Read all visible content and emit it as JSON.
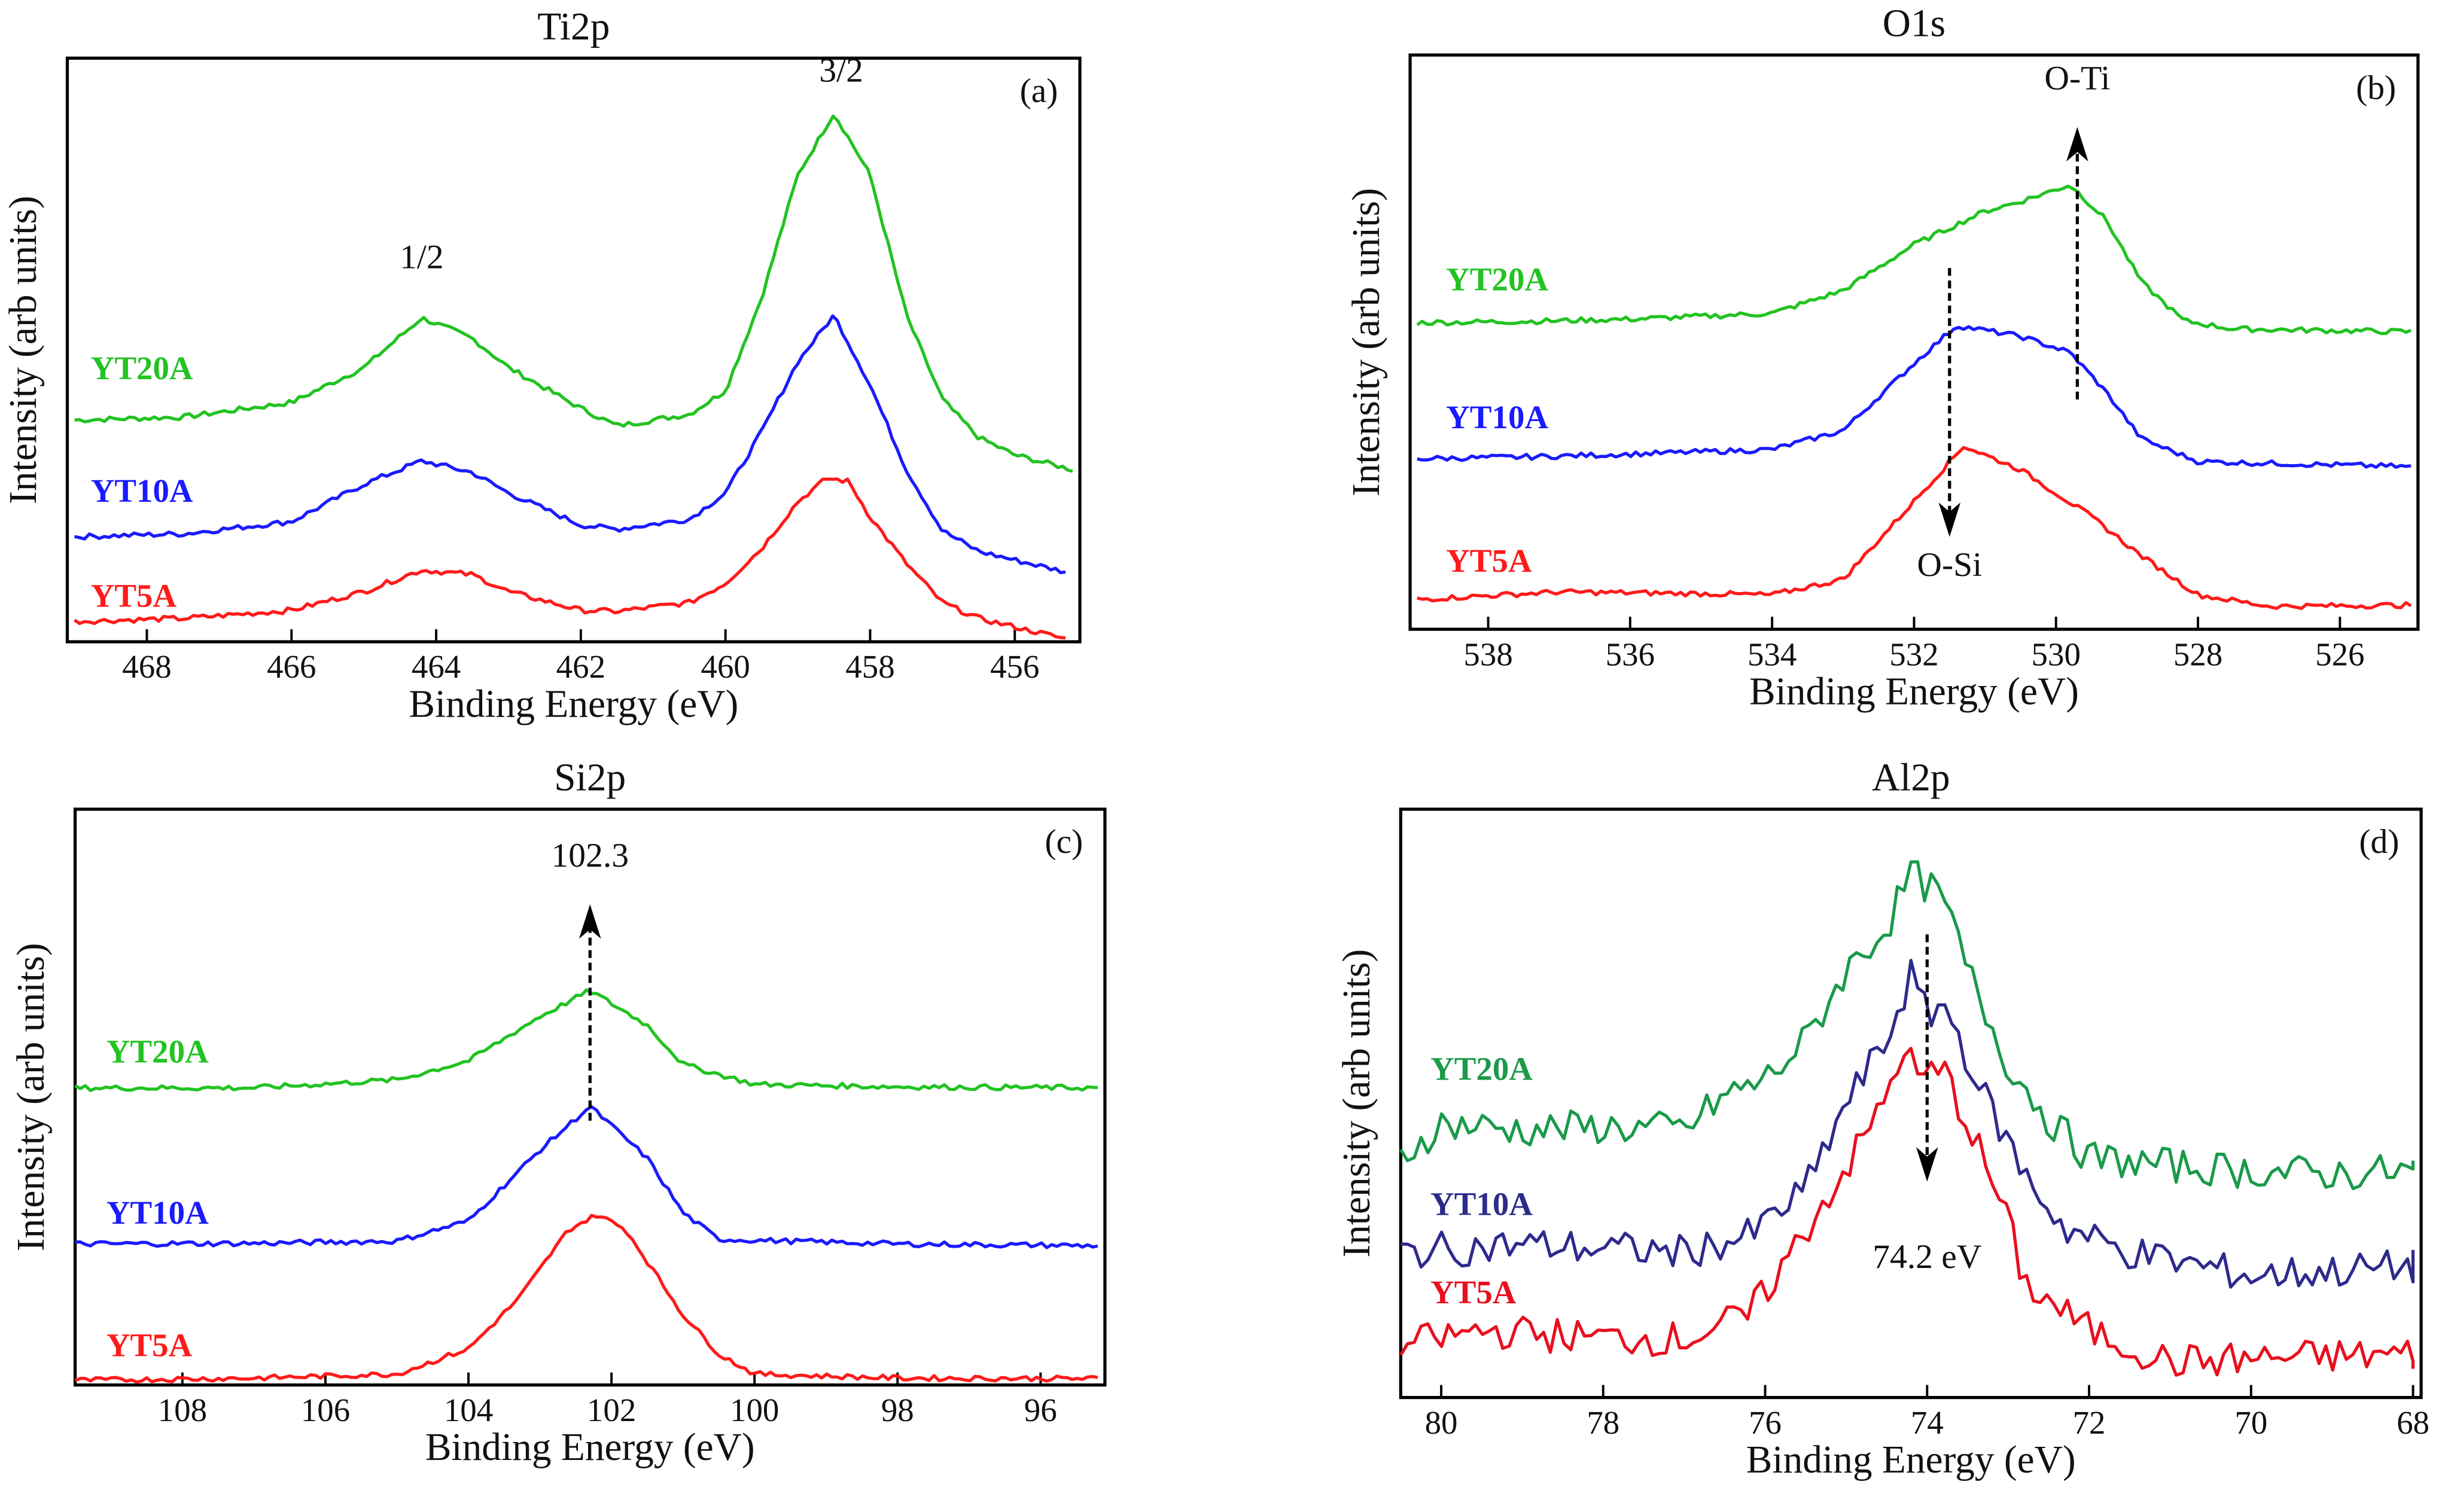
{
  "chart_data": [
    {
      "type": "line",
      "title": "Ti2p",
      "panel_label": "(a)",
      "xlabel": "Binding Energy (eV)",
      "ylabel": "Intensity (arb units)",
      "xlim": [
        469.1,
        455.1
      ],
      "ylim": [
        0,
        100
      ],
      "xticks": [
        468,
        466,
        464,
        462,
        460,
        458,
        456
      ],
      "annotations": [
        {
          "text": "1/2",
          "x": 464.2,
          "y": 64
        },
        {
          "text": "3/2",
          "x": 458.4,
          "y": 96
        }
      ],
      "series": [
        {
          "name": "YT20A",
          "color": "#22c322",
          "label_y": 45,
          "x": [
            469,
            467.5,
            466,
            465,
            464.2,
            463.5,
            463,
            462,
            461.5,
            460.5,
            460,
            459.5,
            459,
            458.5,
            458,
            457.5,
            457,
            456.5,
            456,
            455.2
          ],
          "y": [
            38,
            38.5,
            41,
            47,
            55.5,
            52,
            47,
            40,
            37,
            39,
            43,
            59,
            80,
            90.6,
            80,
            56,
            41.5,
            35,
            32,
            29.5
          ]
        },
        {
          "name": "YT10A",
          "color": "#1a1aff",
          "label_y": 24,
          "x": [
            469,
            467.5,
            466,
            465,
            464.2,
            463.5,
            463,
            462,
            461.5,
            460.5,
            460,
            459.5,
            459,
            458.5,
            458,
            457.5,
            457,
            456.5,
            456,
            455.3
          ],
          "y": [
            18,
            18.5,
            20.6,
            27,
            31,
            29,
            25.5,
            20,
            19.3,
            21,
            25.5,
            36,
            48,
            56,
            44,
            29.5,
            19,
            15.5,
            14,
            12
          ]
        },
        {
          "name": "YT5A",
          "color": "#ff1a1a",
          "label_y": 6,
          "x": [
            469,
            467.5,
            466,
            465,
            464.2,
            463.5,
            463,
            462,
            461.5,
            460.5,
            460,
            459.5,
            459,
            458.6,
            458.3,
            458,
            457.5,
            457,
            456.5,
            455.3
          ],
          "y": [
            3.5,
            4,
            5.4,
            8.6,
            12.3,
            11.5,
            8.6,
            5.4,
            5.2,
            6.7,
            10,
            16,
            24,
            28,
            27.5,
            21.4,
            13.4,
            6.7,
            4,
            0.5
          ]
        }
      ]
    },
    {
      "type": "line",
      "title": "O1s",
      "panel_label": "(b)",
      "xlabel": "Binding Energy (eV)",
      "ylabel": "Intensity (arb units)",
      "xlim": [
        539.1,
        524.9
      ],
      "ylim": [
        0,
        100
      ],
      "xticks": [
        538,
        536,
        534,
        532,
        530,
        528,
        526
      ],
      "annotations": [
        {
          "text": "O-Ti",
          "x": 529.7,
          "y": 94,
          "arrow": "up"
        },
        {
          "text": "O-Si",
          "x": 531.5,
          "y": 12,
          "arrow": "down"
        }
      ],
      "series": [
        {
          "name": "YT20A",
          "color": "#22c322",
          "label_y": 59,
          "x": [
            539,
            537.5,
            536,
            534,
            533,
            532,
            531,
            530.5,
            529.8,
            529.3,
            528.8,
            528.2,
            527.5,
            525
          ],
          "y": [
            53.4,
            53.6,
            54,
            55,
            59,
            67,
            72.8,
            74.5,
            77.4,
            71.4,
            60.5,
            53.7,
            52.3,
            51.8
          ]
        },
        {
          "name": "YT10A",
          "color": "#1a1aff",
          "label_y": 35,
          "x": [
            539,
            537.5,
            536,
            534,
            533,
            532,
            531.4,
            530.5,
            529.8,
            529.3,
            528.8,
            528,
            525
          ],
          "y": [
            29.7,
            30,
            30.5,
            31.3,
            34.6,
            46.3,
            52.9,
            51,
            48.2,
            41.4,
            33.2,
            29.2,
            28.3
          ]
        },
        {
          "name": "YT5A",
          "color": "#ff1a1a",
          "label_y": 10,
          "x": [
            539,
            537,
            535,
            534,
            533,
            532,
            531.3,
            530.5,
            529.5,
            528.8,
            528,
            527,
            525
          ],
          "y": [
            5.2,
            6.5,
            6.2,
            6,
            8.7,
            22.3,
            31.9,
            27.8,
            19.6,
            12.8,
            6,
            4,
            4.2
          ]
        }
      ]
    },
    {
      "type": "line",
      "title": "Si2p",
      "panel_label": "(c)",
      "xlabel": "Binding Energy (eV)",
      "ylabel": "Intensity (arb units)",
      "xlim": [
        109.5,
        95.1
      ],
      "ylim": [
        0,
        100
      ],
      "xticks": [
        108,
        106,
        104,
        102,
        100,
        98,
        96
      ],
      "annotations": [
        {
          "text": "102.3",
          "x": 102.3,
          "y": 90,
          "arrow": "up"
        }
      ],
      "series": [
        {
          "name": "YT20A",
          "color": "#22c322",
          "label_y": 56,
          "x": [
            109.5,
            107,
            105,
            104,
            103,
            102.3,
            101.5,
            101,
            100,
            98,
            95.2
          ],
          "y": [
            51.6,
            51.6,
            53,
            56.3,
            64,
            68.5,
            62.5,
            55.7,
            52.2,
            51.8,
            51.6
          ]
        },
        {
          "name": "YT10A",
          "color": "#1a1aff",
          "label_y": 28,
          "x": [
            109.5,
            107,
            105,
            104,
            103,
            102.3,
            101.5,
            101,
            100.5,
            98,
            95.2
          ],
          "y": [
            24.5,
            24.6,
            25,
            28.5,
            40.8,
            48.4,
            39.4,
            29.9,
            25.3,
            24.5,
            24.2
          ]
        },
        {
          "name": "YT5A",
          "color": "#ff1a1a",
          "label_y": 5,
          "x": [
            109.5,
            107,
            105,
            104,
            103.3,
            102.6,
            102.2,
            101.8,
            101,
            100.5,
            100,
            98,
            95.2
          ],
          "y": [
            0.8,
            1.2,
            1.9,
            6.3,
            15,
            27,
            29.6,
            27,
            12.2,
            5.4,
            1.9,
            1.2,
            1.1
          ]
        }
      ]
    },
    {
      "type": "line",
      "title": "Al2p",
      "panel_label": "(d)",
      "xlabel": "Binding Energy (eV)",
      "ylabel": "Intensity (arb units)",
      "xlim": [
        80.5,
        67.9
      ],
      "ylim": [
        0,
        100
      ],
      "xticks": [
        80,
        78,
        76,
        74,
        72,
        70,
        68
      ],
      "annotations": [
        {
          "text": "74.2 eV",
          "x": 74.0,
          "y": 22,
          "arrow": "down"
        }
      ],
      "series": [
        {
          "name": "YT20A",
          "color": "#1a9a4a",
          "label_y": 54,
          "x": [
            80.5,
            80,
            79,
            78,
            77,
            76.5,
            76,
            75.5,
            75,
            74.5,
            74.2,
            73.8,
            73.5,
            73,
            72.5,
            72,
            71,
            70,
            69,
            68
          ],
          "y": [
            40.7,
            46.5,
            45.5,
            46,
            45.5,
            51.3,
            54,
            60.6,
            72.6,
            80,
            89.1,
            84.6,
            72.6,
            56.6,
            47.3,
            40.7,
            39.4,
            38.5,
            38,
            38.5
          ]
        },
        {
          "name": "YT10A",
          "color": "#2e2a8c",
          "label_y": 31,
          "x": [
            80.5,
            79,
            77,
            76.2,
            75.5,
            75,
            74.5,
            74.2,
            74,
            73.8,
            73.3,
            72.8,
            72.3,
            71.5,
            70,
            68
          ],
          "y": [
            24.7,
            26,
            24.7,
            27.4,
            35.4,
            50,
            60.6,
            71.8,
            64.6,
            67.3,
            51.3,
            38,
            28.7,
            24.7,
            20.7,
            22.3
          ]
        },
        {
          "name": "YT5A",
          "color": "#e8101e",
          "label_y": 16,
          "x": [
            80.5,
            79.5,
            78,
            77,
            76.2,
            75.8,
            75.3,
            74.8,
            74.5,
            74.3,
            74.1,
            73.8,
            73.4,
            73,
            72.8,
            72,
            71,
            70,
            68
          ],
          "y": [
            8.8,
            11.4,
            10.1,
            10,
            14,
            22,
            32.7,
            43.4,
            51.3,
            59.8,
            54,
            55.9,
            43.4,
            30,
            19.4,
            11.4,
            6,
            6.6,
            7.4
          ]
        }
      ]
    }
  ]
}
